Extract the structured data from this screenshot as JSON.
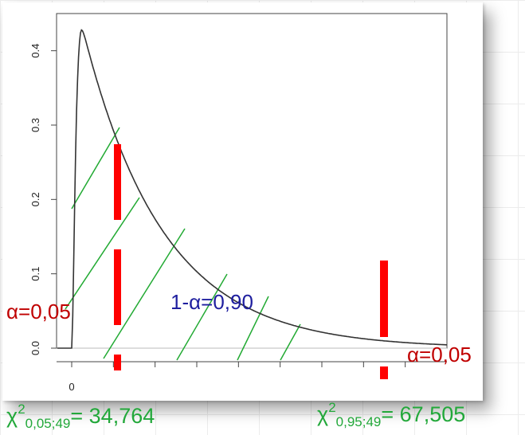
{
  "chart_data": {
    "type": "line",
    "curve": "chi-square density",
    "x_tick_labels": [
      "0"
    ],
    "y_tick_labels": [
      "0.0",
      "0.1",
      "0.2",
      "0.3",
      "0.4"
    ],
    "ylim": [
      0,
      0.45
    ],
    "x_range": [
      0,
      90
    ],
    "degrees_of_freedom": 49,
    "critical_values": [
      34.764,
      67.505
    ],
    "annotations": {
      "alpha_left": "α=0,05",
      "alpha_right": "α=0,05",
      "middle": "1-α=0,90",
      "crit_left": {
        "symbol": "χ",
        "power": "2",
        "sub": "0,05;49",
        "value": "= 34,764"
      },
      "crit_right": {
        "symbol": "χ",
        "power": "2",
        "sub": "0,95;49",
        "value": "= 67,505"
      }
    },
    "colors": {
      "curve": "#333333",
      "marker": "#ff0000",
      "hatch": "#22aa33",
      "alpha_text": "#c00000",
      "middle_text": "#1f1f9f",
      "crit_text": "#22a83a"
    }
  }
}
